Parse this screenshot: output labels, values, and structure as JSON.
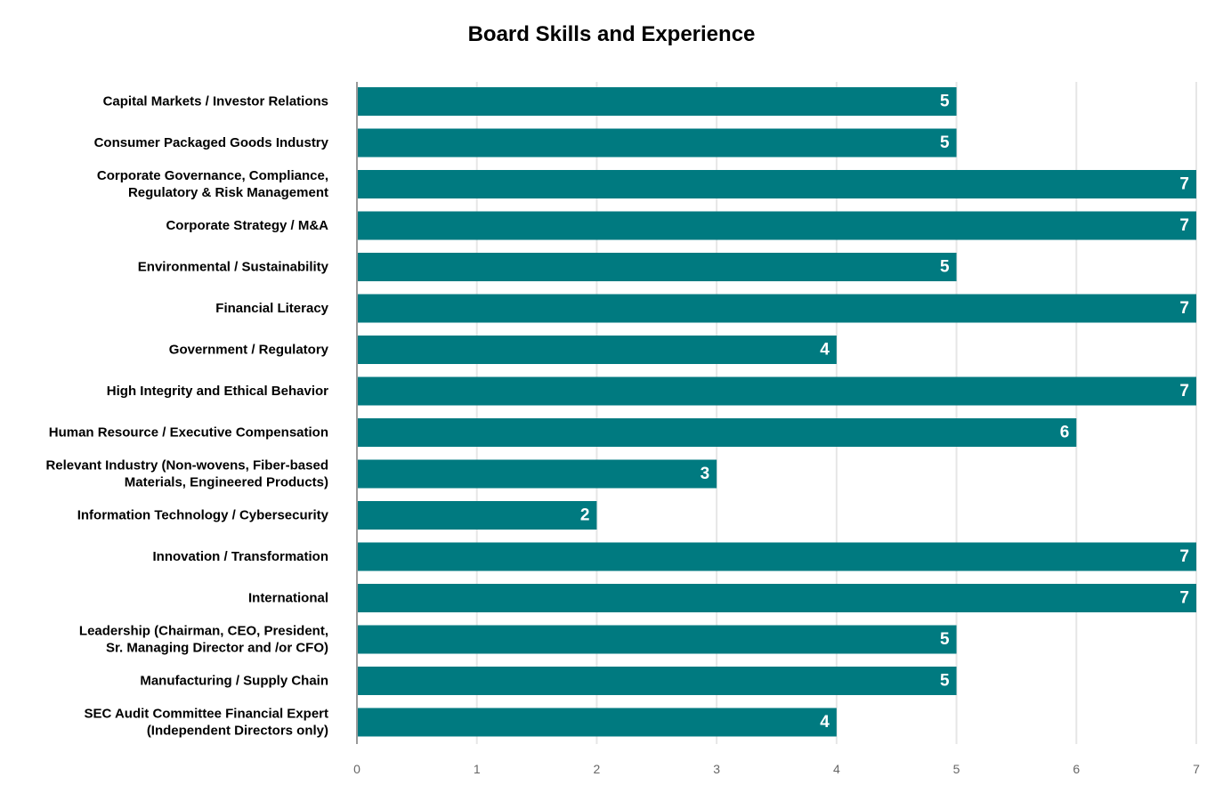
{
  "chart_data": {
    "type": "bar",
    "orientation": "horizontal",
    "title": "Board Skills and Experience",
    "xlabel": "",
    "ylabel": "",
    "categories": [
      [
        "Capital Markets / Investor Relations"
      ],
      [
        "Consumer Packaged Goods Industry"
      ],
      [
        "Corporate Governance, Compliance,",
        "Regulatory & Risk Management"
      ],
      [
        "Corporate Strategy / M&A"
      ],
      [
        "Environmental / Sustainability"
      ],
      [
        "Financial Literacy"
      ],
      [
        "Government / Regulatory"
      ],
      [
        "High Integrity and Ethical Behavior"
      ],
      [
        "Human Resource / Executive Compensation"
      ],
      [
        "Relevant Industry (Non-wovens, Fiber-based",
        "Materials, Engineered Products)"
      ],
      [
        "Information Technology / Cybersecurity"
      ],
      [
        "Innovation / Transformation"
      ],
      [
        "International"
      ],
      [
        "Leadership  (Chairman, CEO, President,",
        "Sr.  Managing Director and /or CFO)"
      ],
      [
        "Manufacturing / Supply Chain"
      ],
      [
        "SEC Audit Committee Financial Expert",
        "(Independent Directors only)"
      ]
    ],
    "values": [
      5,
      5,
      7,
      7,
      5,
      7,
      4,
      7,
      6,
      3,
      2,
      7,
      7,
      5,
      5,
      4
    ],
    "xlim": [
      0,
      7
    ],
    "xticks": [
      0,
      1,
      2,
      3,
      4,
      5,
      6,
      7
    ],
    "grid": "vertical",
    "legend": "none",
    "bar_color": "#007a80",
    "grid_color": "#e6e6e6",
    "axis_color": "#999999"
  }
}
